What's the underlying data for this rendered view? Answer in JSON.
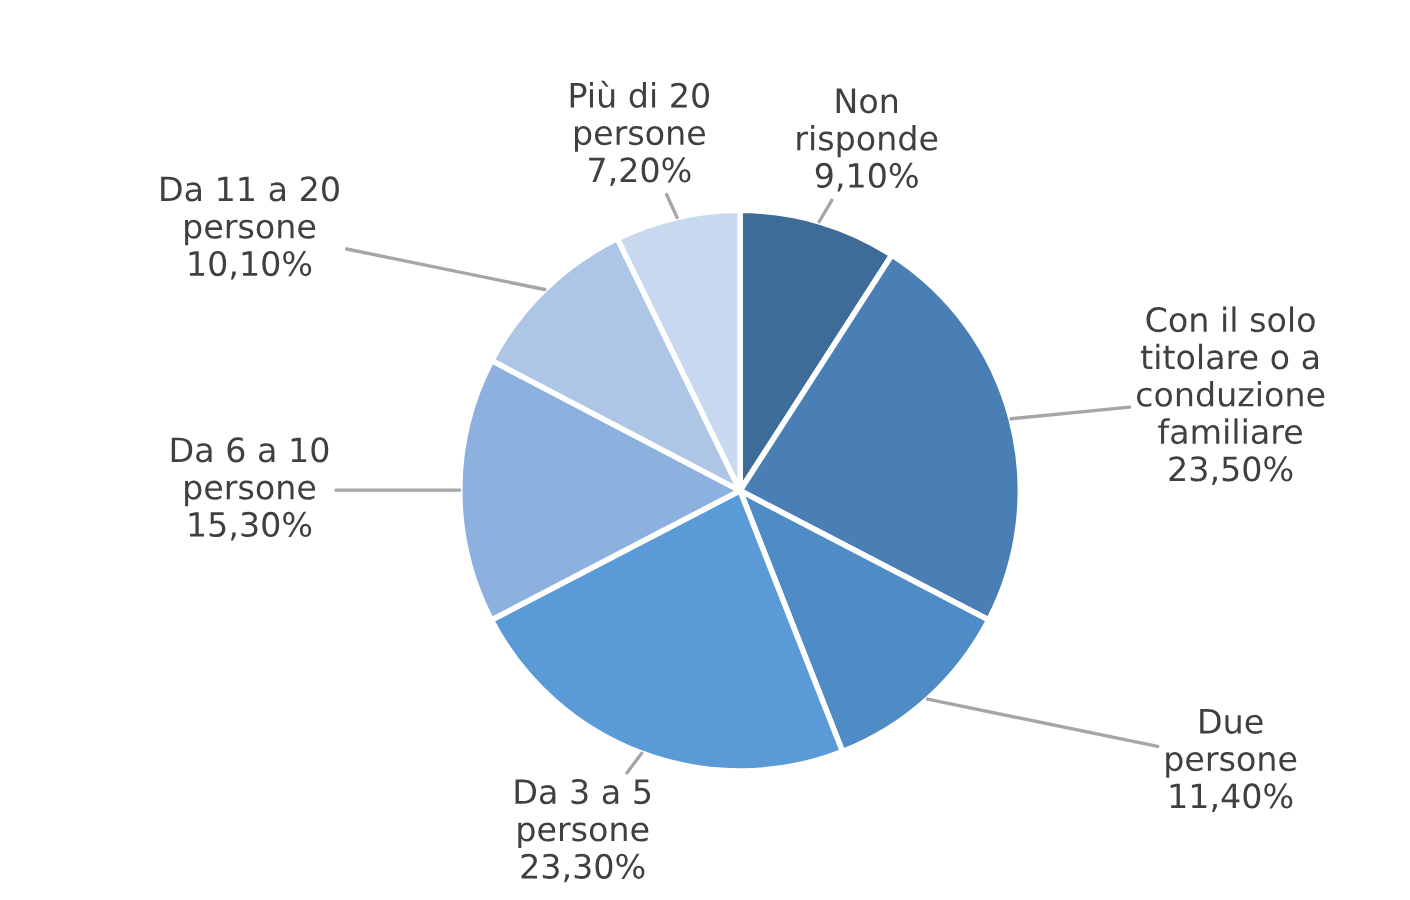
{
  "chart_data": {
    "type": "pie",
    "categories": [
      "Non\nrisponde",
      "Con il solo\ntitolare o a\nconduzione\nfamiliare",
      "Due\npersone",
      "Da 3 a 5\npersone",
      "Da 6 a 10\npersone",
      "Da 11 a 20\npersone",
      "Più di 20\npersone"
    ],
    "values": [
      9.1,
      23.5,
      11.4,
      23.3,
      15.3,
      10.1,
      7.2
    ],
    "value_labels": [
      "9,10%",
      "23,50%",
      "11,40%",
      "23,30%",
      "15,30%",
      "10,10%",
      "7,20%"
    ],
    "colors": [
      "#3e6c98",
      "#4a7fb5",
      "#4f8cc6",
      "#5a9ad6",
      "#8cb1de",
      "#aec6e6",
      "#c8d8ee"
    ],
    "legend": false
  }
}
